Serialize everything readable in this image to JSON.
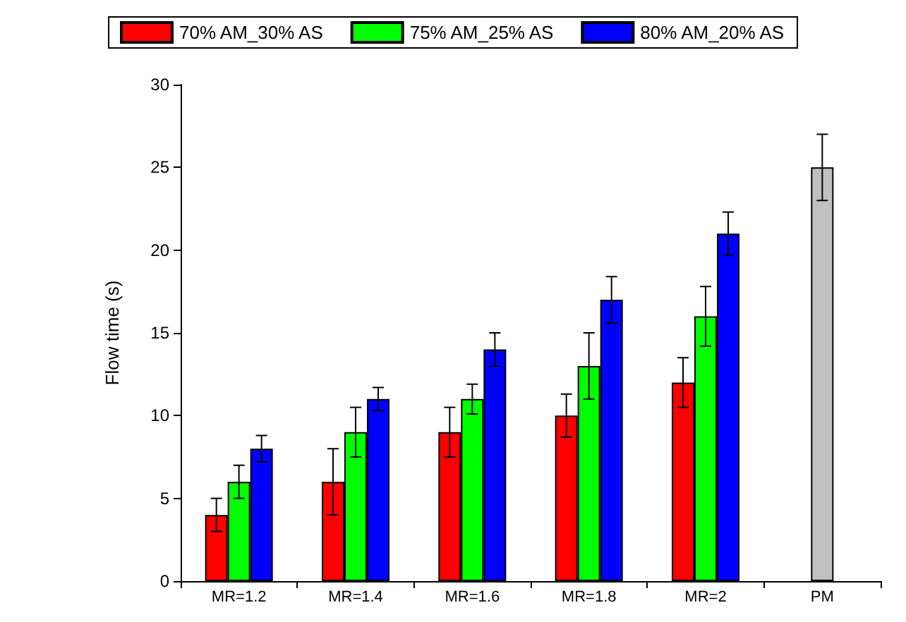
{
  "chart_data": {
    "type": "bar",
    "ylabel": "Flow time (s)",
    "categories": [
      "MR=1.2",
      "MR=1.4",
      "MR=1.6",
      "MR=1.8",
      "MR=2",
      "PM"
    ],
    "series": [
      {
        "name": "70% AM_30% AS",
        "color": "#ff0000",
        "values": [
          4,
          6,
          9,
          10,
          12,
          null
        ],
        "errors": [
          1,
          2,
          1.5,
          1.3,
          1.5,
          null
        ]
      },
      {
        "name": "75% AM_25% AS",
        "color": "#00ff00",
        "values": [
          6,
          9,
          11,
          13,
          16,
          null
        ],
        "errors": [
          1,
          1.5,
          0.9,
          2,
          1.8,
          null
        ]
      },
      {
        "name": "80% AM_20% AS",
        "color": "#0000ff",
        "values": [
          8,
          11,
          14,
          17,
          21,
          null
        ],
        "errors": [
          0.8,
          0.7,
          1,
          1.4,
          1.3,
          null
        ]
      },
      {
        "color": "#c0c0c0",
        "values": [
          null,
          null,
          null,
          null,
          null,
          25
        ],
        "errors": [
          null,
          null,
          null,
          null,
          null,
          2
        ]
      }
    ],
    "ylim": [
      0,
      30
    ],
    "yticks": [
      0,
      5,
      10,
      15,
      20,
      25,
      30
    ],
    "grid": false,
    "legend": "top"
  }
}
